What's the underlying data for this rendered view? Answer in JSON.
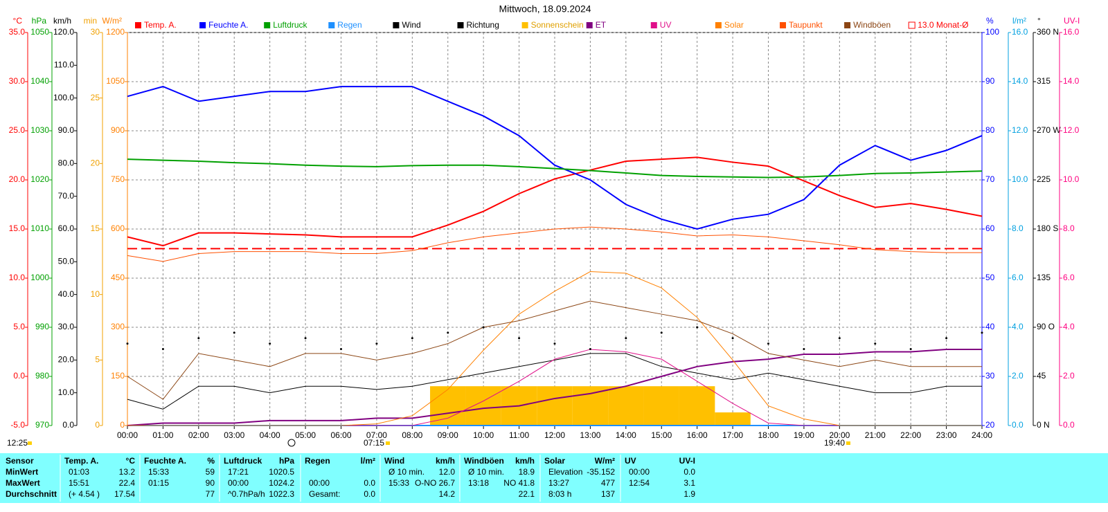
{
  "chart_data": {
    "type": "line",
    "title": "Mittwoch, 18.09.2024",
    "x": [
      0,
      1,
      2,
      3,
      4,
      5,
      6,
      7,
      8,
      9,
      10,
      11,
      12,
      13,
      14,
      15,
      16,
      17,
      18,
      19,
      20,
      21,
      22,
      23,
      24
    ],
    "xlim": [
      0,
      24
    ],
    "xticks": [
      {
        "value": 0,
        "label": "00:00"
      },
      {
        "value": 1,
        "label": "01:00"
      },
      {
        "value": 2,
        "label": "02:00"
      },
      {
        "value": 3,
        "label": "03:00"
      },
      {
        "value": 4,
        "label": "04:00"
      },
      {
        "value": 5,
        "label": "05:00"
      },
      {
        "value": 6,
        "label": "06:00"
      },
      {
        "value": 7,
        "label": "07:00"
      },
      {
        "value": 8,
        "label": "08:00"
      },
      {
        "value": 9,
        "label": "09:00"
      },
      {
        "value": 10,
        "label": "10:00"
      },
      {
        "value": 11,
        "label": "11:00"
      },
      {
        "value": 12,
        "label": "12:00"
      },
      {
        "value": 13,
        "label": "13:00"
      },
      {
        "value": 14,
        "label": "14:00"
      },
      {
        "value": 15,
        "label": "15:00"
      },
      {
        "value": 16,
        "label": "16:00"
      },
      {
        "value": 17,
        "label": "17:00"
      },
      {
        "value": 18,
        "label": "18:00"
      },
      {
        "value": 19,
        "label": "19:00"
      },
      {
        "value": 20,
        "label": "20:00"
      },
      {
        "value": 21,
        "label": "21:00"
      },
      {
        "value": 22,
        "label": "22:00"
      },
      {
        "value": 23,
        "label": "23:00"
      },
      {
        "value": 24,
        "label": "24:00"
      }
    ],
    "grid": true,
    "axes": [
      {
        "label": "°C",
        "color": "#ff0000",
        "side": "left",
        "lim": [
          -5,
          35
        ],
        "ticks": [
          {
            "value": -5,
            "label": "-5.0"
          },
          {
            "value": 0,
            "label": "0.0"
          },
          {
            "value": 5,
            "label": "5.0"
          },
          {
            "value": 10,
            "label": "10.0"
          },
          {
            "value": 15,
            "label": "15.0"
          },
          {
            "value": 20,
            "label": "20.0"
          },
          {
            "value": 25,
            "label": "25.0"
          },
          {
            "value": 30,
            "label": "30.0"
          },
          {
            "value": 35,
            "label": "35.0"
          }
        ]
      },
      {
        "label": "hPa",
        "color": "#00a000",
        "side": "left",
        "lim": [
          970,
          1050
        ],
        "ticks": [
          970,
          980,
          990,
          1000,
          1010,
          1020,
          1030,
          1040,
          1050
        ]
      },
      {
        "label": "km/h",
        "color": "#000000",
        "side": "left",
        "lim": [
          0,
          120
        ],
        "ticks": [
          {
            "value": 0,
            "label": "0.0"
          },
          {
            "value": 10,
            "label": "10.0"
          },
          {
            "value": 20,
            "label": "20.0"
          },
          {
            "value": 30,
            "label": "30.0"
          },
          {
            "value": 40,
            "label": "40.0"
          },
          {
            "value": 50,
            "label": "50.0"
          },
          {
            "value": 60,
            "label": "60.0"
          },
          {
            "value": 70,
            "label": "70.0"
          },
          {
            "value": 80,
            "label": "80.0"
          },
          {
            "value": 90,
            "label": "90.0"
          },
          {
            "value": 100,
            "label": "100.0"
          },
          {
            "value": 110,
            "label": "110.0"
          },
          {
            "value": 120,
            "label": "120.0"
          }
        ]
      },
      {
        "label": "min",
        "color": "#f0a000",
        "side": "left",
        "lim": [
          0,
          30
        ],
        "ticks": [
          0,
          5,
          10,
          15,
          20,
          25,
          30
        ]
      },
      {
        "label": "W/m²",
        "color": "#ff8000",
        "side": "left",
        "lim": [
          0,
          1200
        ],
        "ticks": [
          0,
          150,
          300,
          450,
          600,
          750,
          900,
          1050,
          1200
        ]
      },
      {
        "label": "%",
        "color": "#0000ff",
        "side": "right",
        "lim": [
          20,
          100
        ],
        "ticks": [
          20,
          30,
          40,
          50,
          60,
          70,
          80,
          90,
          100
        ]
      },
      {
        "label": "l/m²",
        "color": "#00a0e0",
        "side": "right",
        "lim": [
          0,
          16
        ],
        "ticks": [
          {
            "value": 0,
            "label": "0.0"
          },
          {
            "value": 2,
            "label": "2.0"
          },
          {
            "value": 4,
            "label": "4.0"
          },
          {
            "value": 6,
            "label": "6.0"
          },
          {
            "value": 8,
            "label": "8.0"
          },
          {
            "value": 10,
            "label": "10.0"
          },
          {
            "value": 12,
            "label": "12.0"
          },
          {
            "value": 14,
            "label": "14.0"
          },
          {
            "value": 16,
            "label": "16.0"
          }
        ]
      },
      {
        "label": "°",
        "color": "#000000",
        "side": "right",
        "lim": [
          0,
          360
        ],
        "ticks": [
          {
            "value": 0,
            "label": "0 N"
          },
          45,
          {
            "value": 90,
            "label": "90 O"
          },
          135,
          {
            "value": 180,
            "label": "180 S"
          },
          225,
          {
            "value": 270,
            "label": "270 W"
          },
          315,
          {
            "value": 360,
            "label": "360 N"
          }
        ]
      },
      {
        "label": "UV-I",
        "color": "#ff0080",
        "side": "right",
        "lim": [
          0,
          16
        ],
        "ticks": [
          {
            "value": 0,
            "label": "0.0"
          },
          {
            "value": 2,
            "label": "2.0"
          },
          {
            "value": 4,
            "label": "4.0"
          },
          {
            "value": 6,
            "label": "6.0"
          },
          {
            "value": 8,
            "label": "8.0"
          },
          {
            "value": 10,
            "label": "10.0"
          },
          {
            "value": 12,
            "label": "12.0"
          },
          {
            "value": 14,
            "label": "14.0"
          },
          {
            "value": 16,
            "label": "16.0"
          }
        ]
      }
    ],
    "series": [
      {
        "name": "Temp. A.",
        "color": "#ff0000",
        "axis": 0,
        "style": "line",
        "width": 2,
        "values": [
          14.2,
          13.3,
          14.6,
          14.6,
          14.5,
          14.4,
          14.2,
          14.2,
          14.2,
          15.4,
          16.8,
          18.6,
          20.1,
          21.0,
          21.9,
          22.1,
          22.3,
          21.8,
          21.4,
          19.9,
          18.4,
          17.2,
          17.6,
          17.0,
          16.3
        ]
      },
      {
        "name": "Feuchte A.",
        "color": "#0000ff",
        "axis": 5,
        "style": "line",
        "width": 2,
        "values": [
          87,
          89,
          86,
          87,
          88,
          88,
          89,
          89,
          89,
          86,
          83,
          79,
          73,
          70,
          65,
          62,
          60,
          62,
          63,
          66,
          73,
          77,
          74,
          76,
          79
        ]
      },
      {
        "name": "Luftdruck",
        "color": "#00a000",
        "axis": 1,
        "style": "line",
        "width": 2,
        "values": [
          1024.2,
          1024.0,
          1023.8,
          1023.5,
          1023.3,
          1023.0,
          1022.8,
          1022.7,
          1022.9,
          1023.0,
          1023.0,
          1022.7,
          1022.3,
          1021.9,
          1021.4,
          1020.9,
          1020.7,
          1020.6,
          1020.5,
          1020.6,
          1020.9,
          1021.3,
          1021.4,
          1021.6,
          1021.8
        ]
      },
      {
        "name": "Regen",
        "color": "#1e90ff",
        "axis": 6,
        "style": "line",
        "width": 2,
        "values": [
          0,
          0,
          0,
          0,
          0,
          0,
          0,
          0,
          0,
          0,
          0,
          0,
          0,
          0,
          0,
          0,
          0,
          0,
          0,
          0,
          0,
          0,
          0,
          0,
          0
        ]
      },
      {
        "name": "Wind",
        "color": "#000000",
        "axis": 2,
        "style": "line",
        "width": 1,
        "values": [
          8,
          5,
          12,
          12,
          10,
          12,
          12,
          11,
          12,
          14,
          16,
          18,
          20,
          22,
          22,
          18,
          16,
          14,
          16,
          14,
          12,
          10,
          10,
          12,
          12
        ]
      },
      {
        "name": "Richtung",
        "color": "#000000",
        "axis": 7,
        "style": "scatter",
        "width": 1,
        "values": [
          75,
          70,
          80,
          85,
          75,
          80,
          70,
          75,
          80,
          85,
          90,
          80,
          75,
          70,
          80,
          85,
          90,
          80,
          75,
          70,
          80,
          75,
          70,
          80,
          85
        ]
      },
      {
        "name": "Sonnenschein",
        "color": "#ffc000",
        "axis": 3,
        "style": "bar",
        "width": 1,
        "values": [
          0,
          0,
          0,
          0,
          0,
          0,
          0,
          0,
          0,
          3.0,
          3.0,
          3.0,
          3.0,
          3.0,
          3.0,
          3.0,
          3.0,
          1.0,
          0,
          0,
          0,
          0,
          0,
          0,
          0
        ]
      },
      {
        "name": "ET",
        "color": "#800080",
        "axis": 6,
        "style": "line",
        "width": 2,
        "values": [
          0,
          0.1,
          0.1,
          0.1,
          0.2,
          0.2,
          0.2,
          0.3,
          0.3,
          0.5,
          0.7,
          0.8,
          1.1,
          1.3,
          1.6,
          2.0,
          2.4,
          2.6,
          2.7,
          2.9,
          2.9,
          3.0,
          3.0,
          3.1,
          3.1
        ]
      },
      {
        "name": "UV",
        "color": "#e0108a",
        "axis": 8,
        "style": "line",
        "width": 1,
        "values": [
          0,
          0,
          0,
          0,
          0,
          0,
          0,
          0,
          0,
          0.3,
          1.0,
          1.8,
          2.7,
          3.1,
          3.0,
          2.7,
          1.8,
          0.9,
          0.1,
          0,
          0,
          0,
          0,
          0,
          0
        ]
      },
      {
        "name": "Solar",
        "color": "#ff8000",
        "axis": 4,
        "style": "line",
        "width": 1,
        "values": [
          0,
          0,
          0,
          0,
          0,
          0,
          0,
          5,
          30,
          110,
          230,
          340,
          410,
          470,
          465,
          420,
          330,
          200,
          60,
          20,
          0,
          0,
          0,
          0,
          0
        ]
      },
      {
        "name": "Taupunkt",
        "color": "#ff5000",
        "axis": 0,
        "style": "line",
        "width": 1,
        "values": [
          12.3,
          11.7,
          12.5,
          12.7,
          12.7,
          12.7,
          12.5,
          12.5,
          12.8,
          13.6,
          14.2,
          14.6,
          15.0,
          15.2,
          15.0,
          14.7,
          14.3,
          14.4,
          14.2,
          13.8,
          13.4,
          12.9,
          12.7,
          12.6,
          12.6
        ]
      },
      {
        "name": "Windböen",
        "color": "#8b4513",
        "axis": 2,
        "style": "line",
        "width": 1,
        "values": [
          15,
          8,
          22,
          20,
          18,
          22,
          22,
          20,
          22,
          25,
          30,
          32,
          35,
          38,
          36,
          34,
          32,
          28,
          22,
          20,
          18,
          20,
          18,
          18,
          18
        ]
      }
    ],
    "reference": {
      "name": "13.0 Monat-Ø",
      "color": "#ff0000",
      "axis": 0,
      "value": 13.0
    },
    "annotations": [
      "12:25",
      "07:15",
      "19:40"
    ]
  },
  "table": {
    "header": "Sensor",
    "rows": [
      "MinWert",
      "MaxWert",
      "Durchschnitt"
    ],
    "groups": [
      {
        "name": "Temp. A.",
        "unit": "°C",
        "rows": [
          [
            "01:03",
            "13.2"
          ],
          [
            "15:51",
            "22.4"
          ],
          [
            "(+ 4.54 )",
            "17.54"
          ]
        ]
      },
      {
        "name": "Feuchte A.",
        "unit": "%",
        "rows": [
          [
            "15:33",
            "59"
          ],
          [
            "01:15",
            "90"
          ],
          [
            null,
            "77"
          ]
        ]
      },
      {
        "name": "Luftdruck",
        "unit": "hPa",
        "rows": [
          [
            "17:21",
            "1020.5"
          ],
          [
            "00:00",
            "1024.2"
          ],
          [
            "^0.7hPa/h",
            "1022.3"
          ]
        ]
      },
      {
        "name": "Regen",
        "unit": "l/m²",
        "rows": [
          [
            null,
            null
          ],
          [
            "00:00",
            "0.0"
          ],
          [
            "Gesamt:",
            "0.0"
          ]
        ]
      },
      {
        "name": "Wind",
        "unit": "km/h",
        "rows": [
          [
            "Ø 10 min.",
            "12.0"
          ],
          [
            "15:33",
            "O-NO 26.7"
          ],
          [
            null,
            "14.2"
          ]
        ]
      },
      {
        "name": "Windböen",
        "unit": "km/h",
        "rows": [
          [
            "Ø 10 min.",
            "18.9"
          ],
          [
            "13:18",
            "NO 41.8"
          ],
          [
            null,
            "22.1"
          ]
        ]
      },
      {
        "name": "Solar",
        "unit": "W/m²",
        "rows": [
          [
            "Elevation",
            "-35.152"
          ],
          [
            "13:27",
            "477"
          ],
          [
            "8:03 h",
            "137"
          ]
        ]
      },
      {
        "name": "UV",
        "unit": "UV-I",
        "rows": [
          [
            "00:00",
            "0.0"
          ],
          [
            "12:54",
            "3.1"
          ],
          [
            null,
            "1.9"
          ]
        ]
      }
    ]
  }
}
